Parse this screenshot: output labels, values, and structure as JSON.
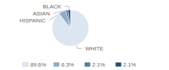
{
  "chart_data": {
    "type": "pie",
    "categories": [
      "WHITE",
      "HISPANIC",
      "ASIAN",
      "BLACK"
    ],
    "values": [
      89.6,
      6.3,
      2.1,
      2.1
    ],
    "value_labels": [
      "89.6%",
      "6.3%",
      "2.1%",
      "2.1%"
    ],
    "colors": [
      "#dce6f1",
      "#8eaacc",
      "#4d7fac",
      "#1f4e79"
    ],
    "legend": "bottom"
  }
}
